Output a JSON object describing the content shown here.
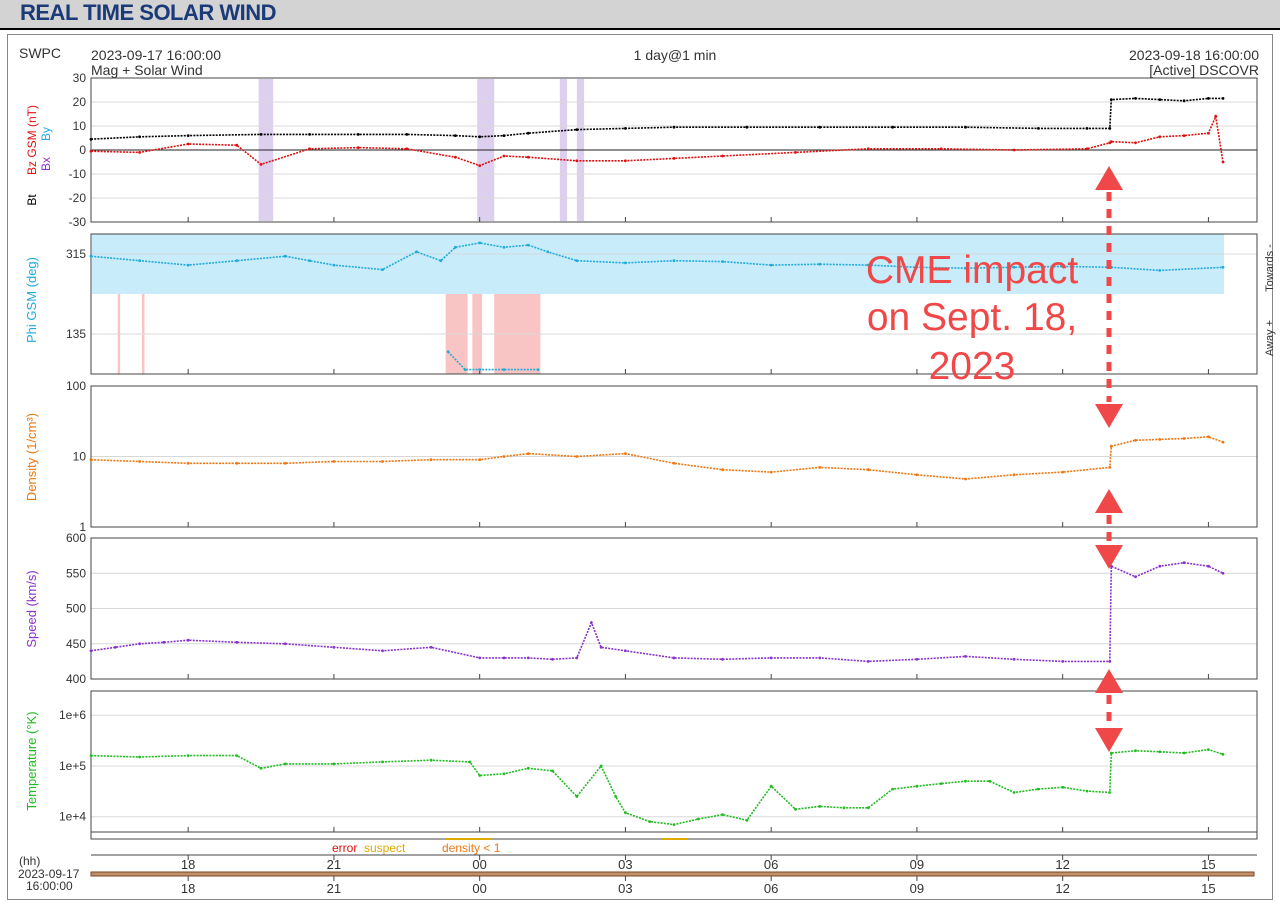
{
  "page": {
    "title": "REAL TIME SOLAR WIND",
    "source": "SWPC",
    "start_time": "2023-09-17 16:00:00",
    "product": "Mag + Solar Wind",
    "span": "1 day@1 min",
    "end_time": "2023-09-18 16:00:00",
    "spacecraft": "[Active] DSCOVR",
    "hh_label": "(hh)",
    "start_date": "2023-09-17",
    "start_clock": "16:00:00"
  },
  "annotation": {
    "lines": [
      "CME impact",
      "on Sept. 18,",
      "2023"
    ],
    "color": "#f04848"
  },
  "legend": {
    "error": "error",
    "suspect": "suspect",
    "density_low": "density < 1"
  },
  "colors": {
    "bz": "#dd1111",
    "bt": "#000000",
    "phi": "#22aadd",
    "phi_towards_fill": "#c8ecfa",
    "phi_away_fill": "#f8c4c4",
    "density": "#ee7711",
    "speed": "#8833cc",
    "temperature": "#22bb22",
    "southward_fill": "#ddd0ee",
    "title": "#1a3a78"
  },
  "chart_data": {
    "type": "line",
    "time_axis": {
      "start": "2023-09-17 16:00:00",
      "end": "2023-09-18 16:00:00",
      "tick_labels": [
        "18",
        "21",
        "00",
        "03",
        "06",
        "09",
        "12",
        "15"
      ],
      "tick_hours": [
        18,
        21,
        24,
        27,
        30,
        33,
        36,
        39
      ]
    },
    "panels": [
      {
        "name": "mag",
        "ylabel_parts": [
          "Bz GSM (nT)",
          "Bt",
          "Bx",
          "By"
        ],
        "ylim": [
          -30,
          30
        ],
        "yticks": [
          30,
          20,
          10,
          0,
          -10,
          -20,
          -30
        ],
        "series": [
          {
            "name": "Bt",
            "color": "#000000",
            "x": [
              16.0,
              17.0,
              18.0,
              19.5,
              20.5,
              21.5,
              22.5,
              23.5,
              24.0,
              24.5,
              25.0,
              26.0,
              27.0,
              28.0,
              29.5,
              31.0,
              32.5,
              34.0,
              35.5,
              36.5,
              36.97,
              37.0,
              37.5,
              38.0,
              38.5,
              39.0,
              39.3
            ],
            "y": [
              4.5,
              5.5,
              6,
              6.5,
              6.5,
              6.5,
              6.5,
              6.0,
              5.5,
              6.0,
              7.0,
              8.5,
              9,
              9.5,
              9.5,
              9.5,
              9.5,
              9.5,
              9.0,
              9.0,
              9.0,
              21.0,
              21.5,
              21.0,
              20.5,
              21.5,
              21.5
            ]
          },
          {
            "name": "Bz GSM",
            "color": "#dd1111",
            "x": [
              16.0,
              17.0,
              18.0,
              19.0,
              19.5,
              20.5,
              21.5,
              22.5,
              23.5,
              24.0,
              24.5,
              25.0,
              26.0,
              27.0,
              28.0,
              29.0,
              30.5,
              32.0,
              33.5,
              35.0,
              36.5,
              36.97,
              37.0,
              37.5,
              38.0,
              38.5,
              39.0,
              39.15,
              39.3
            ],
            "y": [
              -0.5,
              -1.0,
              2.5,
              2.0,
              -6.0,
              0.5,
              1.0,
              0.5,
              -3.0,
              -6.5,
              -2.5,
              -3.0,
              -4.5,
              -4.5,
              -3.5,
              -2.5,
              -1.0,
              0.5,
              0.5,
              0.0,
              0.5,
              3.0,
              3.5,
              3.0,
              5.5,
              6.0,
              7.0,
              14.0,
              -5.0
            ]
          }
        ],
        "southward_bands_hours": [
          [
            19.45,
            19.75
          ],
          [
            23.95,
            24.3
          ],
          [
            25.65,
            25.8
          ],
          [
            26.0,
            26.15
          ]
        ]
      },
      {
        "name": "phi",
        "ylabel": "Phi GSM (deg)",
        "ylim": [
          45,
          360
        ],
        "yticks": [
          315,
          135
        ],
        "side_labels": [
          "Towards -",
          "Away +"
        ],
        "away_bands_hours": [
          [
            16.55,
            16.6
          ],
          [
            17.05,
            17.1
          ],
          [
            23.3,
            23.75
          ],
          [
            23.85,
            24.05
          ],
          [
            24.3,
            25.25
          ]
        ],
        "series": [
          {
            "name": "Phi GSM",
            "color": "#22aadd",
            "x": [
              16.0,
              17.0,
              18.0,
              19.0,
              20.0,
              20.5,
              21.0,
              22.0,
              22.7,
              23.2,
              23.5,
              24.0,
              24.5,
              25.0,
              25.4,
              26.0,
              27.0,
              28.0,
              29.0,
              30.0,
              31.0,
              32.0,
              33.0,
              34.0,
              35.0,
              36.0,
              37.0,
              38.0,
              39.3
            ],
            "y": [
              310,
              300,
              290,
              300,
              310,
              300,
              290,
              280,
              320,
              300,
              330,
              340,
              330,
              335,
              320,
              300,
              295,
              300,
              298,
              290,
              292,
              290,
              285,
              283,
              285,
              287,
              285,
              278,
              285
            ]
          },
          {
            "name": "Phi GSM away",
            "color": "#22aadd",
            "x": [
              23.35,
              23.7,
              24.0,
              24.5,
              25.2
            ],
            "y": [
              95,
              55,
              55,
              55,
              55
            ]
          }
        ]
      },
      {
        "name": "density",
        "ylabel": "Density (1/cm³)",
        "scale": "log",
        "ylim": [
          1,
          100
        ],
        "ytick_labels": [
          "100",
          "10",
          "1"
        ],
        "series": [
          {
            "name": "Density",
            "color": "#ee7711",
            "x": [
              16.0,
              17.0,
              18.0,
              19.0,
              20.0,
              21.0,
              22.0,
              23.0,
              24.0,
              24.5,
              25.0,
              26.0,
              27.0,
              28.0,
              29.0,
              30.0,
              31.0,
              32.0,
              33.0,
              34.0,
              35.0,
              36.0,
              36.97,
              37.0,
              37.5,
              38.0,
              38.5,
              39.0,
              39.3
            ],
            "y": [
              9,
              8.5,
              8,
              8,
              8,
              8.5,
              8.5,
              9,
              9,
              10,
              11,
              10,
              11,
              8,
              6.5,
              6,
              7,
              6.5,
              5.5,
              4.8,
              5.5,
              6,
              7,
              14,
              17,
              17.5,
              18,
              19,
              16
            ]
          }
        ]
      },
      {
        "name": "speed",
        "ylabel": "Speed (km/s)",
        "ylim": [
          400,
          600
        ],
        "yticks": [
          600,
          550,
          500,
          450,
          400
        ],
        "series": [
          {
            "name": "Speed",
            "color": "#8833cc",
            "x": [
              16.0,
              16.5,
              17.0,
              17.5,
              18.0,
              19.0,
              20.0,
              21.0,
              22.0,
              23.0,
              24.0,
              24.5,
              25.0,
              25.5,
              26.0,
              26.3,
              26.5,
              27.0,
              28.0,
              29.0,
              30.0,
              31.0,
              32.0,
              33.0,
              34.0,
              35.0,
              36.0,
              36.97,
              37.0,
              37.5,
              38.0,
              38.5,
              39.0,
              39.3
            ],
            "y": [
              440,
              445,
              450,
              452,
              455,
              452,
              450,
              445,
              440,
              445,
              430,
              430,
              430,
              428,
              430,
              480,
              445,
              440,
              430,
              428,
              430,
              430,
              425,
              428,
              432,
              428,
              425,
              425,
              560,
              545,
              560,
              565,
              560,
              550
            ]
          }
        ]
      },
      {
        "name": "temperature",
        "ylabel": "Temperature (°K)",
        "scale": "log",
        "ylim": [
          5000,
          3000000
        ],
        "ytick_labels": [
          "1e+6",
          "1e+5",
          "1e+4"
        ],
        "series": [
          {
            "name": "Temperature",
            "color": "#22bb22",
            "x": [
              16.0,
              17.0,
              18.0,
              19.0,
              19.5,
              20.0,
              21.0,
              22.0,
              23.0,
              23.8,
              24.0,
              24.5,
              25.0,
              25.5,
              26.0,
              26.5,
              26.8,
              27.0,
              27.5,
              28.0,
              28.5,
              29.0,
              29.5,
              30.0,
              30.5,
              31.0,
              31.5,
              32.0,
              32.5,
              33.0,
              33.5,
              34.0,
              34.5,
              35.0,
              35.5,
              36.0,
              36.5,
              36.97,
              37.0,
              37.5,
              38.0,
              38.5,
              39.0,
              39.3
            ],
            "y": [
              160000,
              150000,
              160000,
              160000,
              90000,
              110000,
              110000,
              120000,
              130000,
              120000,
              65000,
              70000,
              90000,
              80000,
              25000,
              100000,
              25000,
              12000,
              8000,
              7000,
              9000,
              11000,
              8500,
              40000,
              14000,
              16000,
              15000,
              15000,
              35000,
              40000,
              45000,
              50000,
              50000,
              30000,
              35000,
              38000,
              32000,
              30000,
              180000,
              200000,
              190000,
              180000,
              210000,
              170000
            ]
          }
        ]
      }
    ]
  }
}
